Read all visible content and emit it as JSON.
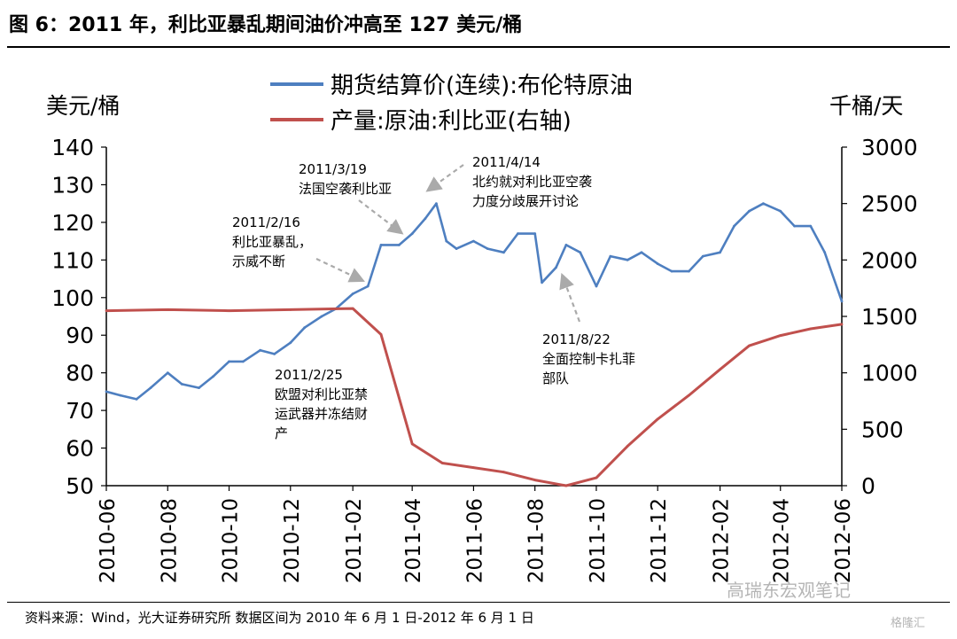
{
  "title": "图 6：2011 年，利比亚暴乱期间油价冲高至 127 美元/桶",
  "source": "资料来源：Wind，光大证券研究所 数据区间为 2010 年 6 月 1 日-2012 年 6 月 1 日",
  "watermark": "高瑞东宏观笔记",
  "watermark2": "格隆汇",
  "chart_data": {
    "type": "line",
    "x_type": "date",
    "xlim": [
      "2010-06-01",
      "2012-06-01"
    ],
    "x_ticks": [
      "2010-06",
      "2010-08",
      "2010-10",
      "2010-12",
      "2011-02",
      "2011-04",
      "2011-06",
      "2011-08",
      "2011-10",
      "2011-12",
      "2012-02",
      "2012-04",
      "2012-06"
    ],
    "ylabel_left": "美元/桶",
    "ylabel_right": "千桶/天",
    "ylim_left": [
      50,
      140
    ],
    "y_ticks_left": [
      50,
      60,
      70,
      80,
      90,
      100,
      110,
      120,
      130,
      140
    ],
    "ylim_right": [
      0,
      3000
    ],
    "y_ticks_right": [
      0,
      500,
      1000,
      1500,
      2000,
      2500,
      3000
    ],
    "legend_position": "top-center",
    "grid": false,
    "series": [
      {
        "name": "期货结算价(连续):布伦特原油",
        "axis": "left",
        "color": "#4e7fc0",
        "points": [
          [
            "2010-06-01",
            75
          ],
          [
            "2010-06-15",
            74
          ],
          [
            "2010-07-01",
            73
          ],
          [
            "2010-07-15",
            76
          ],
          [
            "2010-08-01",
            80
          ],
          [
            "2010-08-15",
            77
          ],
          [
            "2010-09-01",
            76
          ],
          [
            "2010-09-15",
            79
          ],
          [
            "2010-10-01",
            83
          ],
          [
            "2010-10-15",
            83
          ],
          [
            "2010-11-01",
            86
          ],
          [
            "2010-11-15",
            85
          ],
          [
            "2010-12-01",
            88
          ],
          [
            "2010-12-15",
            92
          ],
          [
            "2011-01-01",
            95
          ],
          [
            "2011-01-15",
            97
          ],
          [
            "2011-02-01",
            101
          ],
          [
            "2011-02-16",
            103
          ],
          [
            "2011-03-01",
            114
          ],
          [
            "2011-03-19",
            114
          ],
          [
            "2011-04-01",
            117
          ],
          [
            "2011-04-14",
            121
          ],
          [
            "2011-04-25",
            125
          ],
          [
            "2011-05-05",
            115
          ],
          [
            "2011-05-15",
            113
          ],
          [
            "2011-06-01",
            115
          ],
          [
            "2011-06-15",
            113
          ],
          [
            "2011-07-01",
            112
          ],
          [
            "2011-07-15",
            117
          ],
          [
            "2011-08-01",
            117
          ],
          [
            "2011-08-08",
            104
          ],
          [
            "2011-08-22",
            108
          ],
          [
            "2011-09-01",
            114
          ],
          [
            "2011-09-15",
            112
          ],
          [
            "2011-10-01",
            103
          ],
          [
            "2011-10-15",
            111
          ],
          [
            "2011-11-01",
            110
          ],
          [
            "2011-11-15",
            112
          ],
          [
            "2011-12-01",
            109
          ],
          [
            "2011-12-15",
            107
          ],
          [
            "2012-01-01",
            107
          ],
          [
            "2012-01-15",
            111
          ],
          [
            "2012-02-01",
            112
          ],
          [
            "2012-02-15",
            119
          ],
          [
            "2012-03-01",
            123
          ],
          [
            "2012-03-15",
            125
          ],
          [
            "2012-04-01",
            123
          ],
          [
            "2012-04-15",
            119
          ],
          [
            "2012-05-01",
            119
          ],
          [
            "2012-05-15",
            112
          ],
          [
            "2012-06-01",
            99
          ]
        ]
      },
      {
        "name": "产量:原油:利比亚(右轴)",
        "axis": "right",
        "color": "#c0504d",
        "points": [
          [
            "2010-06-01",
            1550
          ],
          [
            "2010-08-01",
            1560
          ],
          [
            "2010-10-01",
            1550
          ],
          [
            "2010-12-01",
            1560
          ],
          [
            "2011-02-01",
            1570
          ],
          [
            "2011-03-01",
            1340
          ],
          [
            "2011-04-01",
            370
          ],
          [
            "2011-05-01",
            200
          ],
          [
            "2011-06-01",
            160
          ],
          [
            "2011-07-01",
            120
          ],
          [
            "2011-08-01",
            50
          ],
          [
            "2011-09-01",
            0
          ],
          [
            "2011-10-01",
            70
          ],
          [
            "2011-11-01",
            350
          ],
          [
            "2011-12-01",
            590
          ],
          [
            "2012-01-01",
            800
          ],
          [
            "2012-02-01",
            1030
          ],
          [
            "2012-03-01",
            1240
          ],
          [
            "2012-04-01",
            1330
          ],
          [
            "2012-05-01",
            1390
          ],
          [
            "2012-06-01",
            1430
          ]
        ]
      }
    ],
    "annotations": [
      {
        "lines": [
          "2011/2/16",
          "利比亚暴乱，",
          "示威不断"
        ]
      },
      {
        "lines": [
          "2011/3/19",
          "法国空袭利比亚"
        ]
      },
      {
        "lines": [
          "2011/4/14",
          "北约就对利比亚空袭",
          "力度分歧展开讨论"
        ]
      },
      {
        "lines": [
          "2011/2/25",
          "欧盟对利比亚禁",
          "运武器并冻结财",
          "产"
        ]
      },
      {
        "lines": [
          "2011/8/22",
          "全面控制卡扎菲",
          "部队"
        ]
      }
    ]
  }
}
